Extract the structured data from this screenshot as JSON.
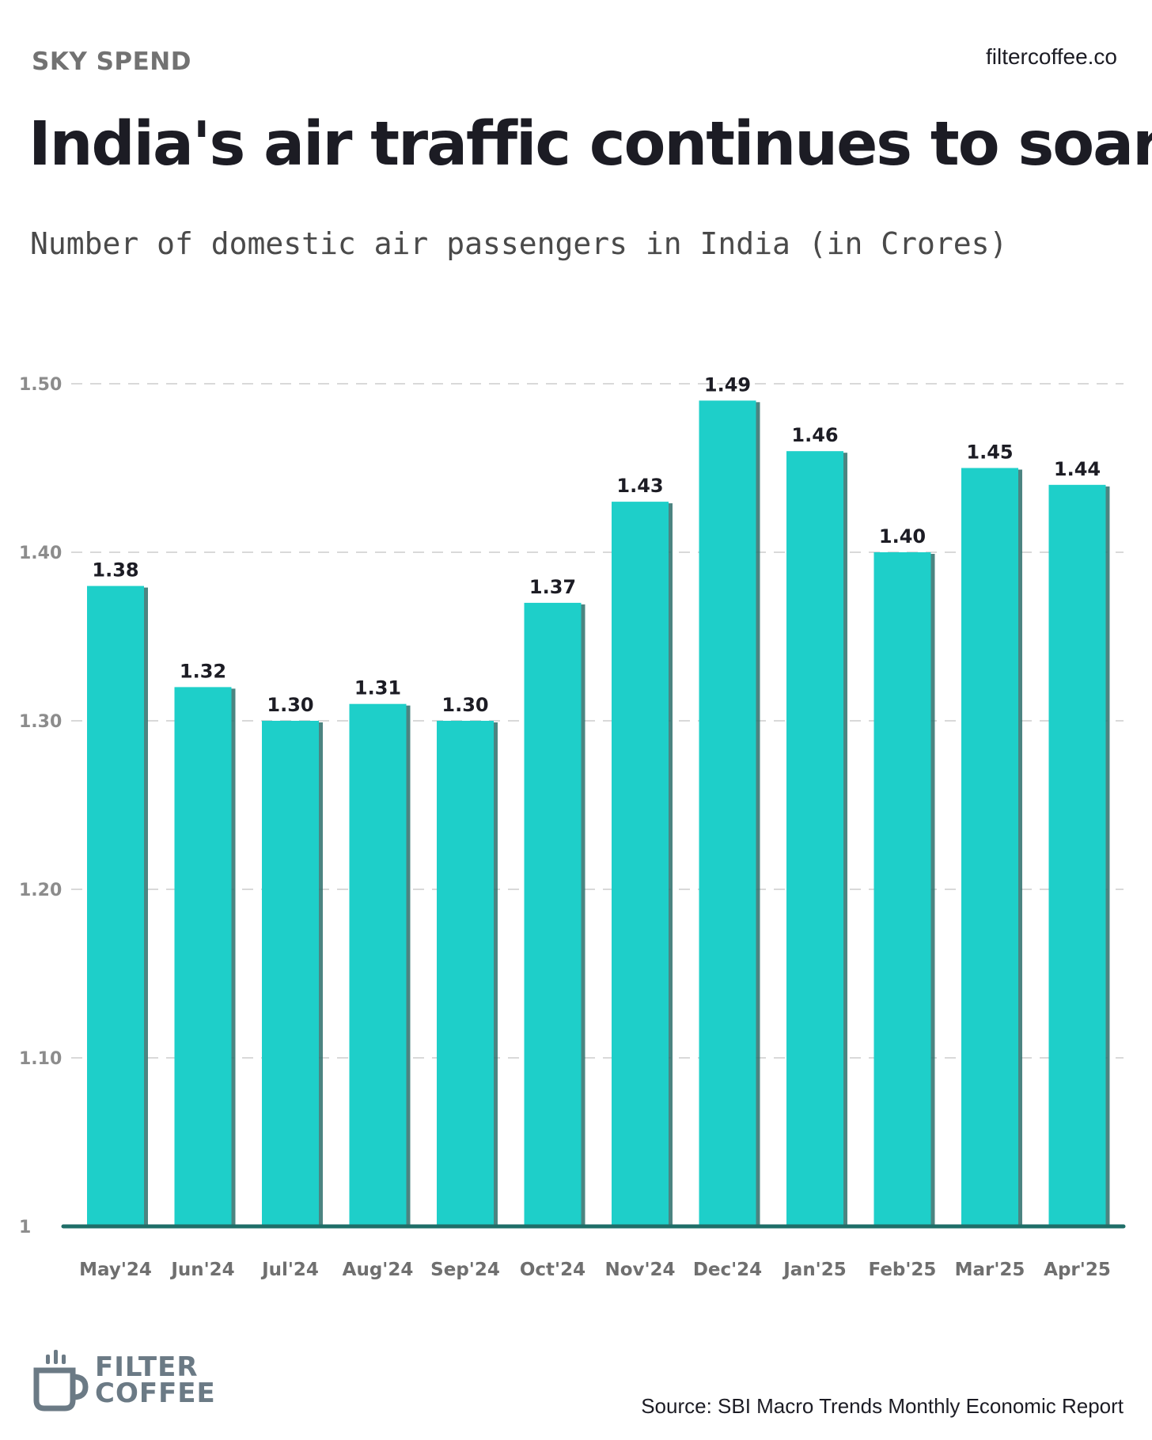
{
  "header": {
    "kicker": "SKY SPEND",
    "site": "filtercoffee.co",
    "headline": "India's air traffic continues to soar",
    "subtitle": "Number of domestic air passengers in India (in Crores)"
  },
  "footer": {
    "logo_line1": "FILTER",
    "logo_line2": "COFFEE",
    "logo_icon": "coffee-mug-icon",
    "source": "Source: SBI Macro Trends Monthly Economic Report"
  },
  "colors": {
    "bar": "#1ecfc9",
    "bar_shadow": "#2d6e6b",
    "baseline": "#1f6e68",
    "grid": "#d9d9d9"
  },
  "chart_data": {
    "type": "bar",
    "title": "India's air traffic continues to soar",
    "subtitle": "Number of domestic air passengers in India (in Crores)",
    "xlabel": "",
    "ylabel": "",
    "categories": [
      "May'24",
      "Jun'24",
      "Jul'24",
      "Aug'24",
      "Sep'24",
      "Oct'24",
      "Nov'24",
      "Dec'24",
      "Jan'25",
      "Feb'25",
      "Mar'25",
      "Apr'25"
    ],
    "values": [
      1.38,
      1.32,
      1.3,
      1.31,
      1.3,
      1.37,
      1.43,
      1.49,
      1.46,
      1.4,
      1.45,
      1.44
    ],
    "data_labels": [
      "1.38",
      "1.32",
      "1.30",
      "1.31",
      "1.30",
      "1.37",
      "1.43",
      "1.49",
      "1.46",
      "1.40",
      "1.45",
      "1.44"
    ],
    "ylim": [
      1,
      1.5
    ],
    "yticks": [
      1,
      1.1,
      1.2,
      1.3,
      1.4,
      1.5
    ],
    "ytick_labels": [
      "1",
      "1.10",
      "1.20",
      "1.30",
      "1.40",
      "1.50"
    ],
    "grid": true,
    "legend": "none"
  }
}
